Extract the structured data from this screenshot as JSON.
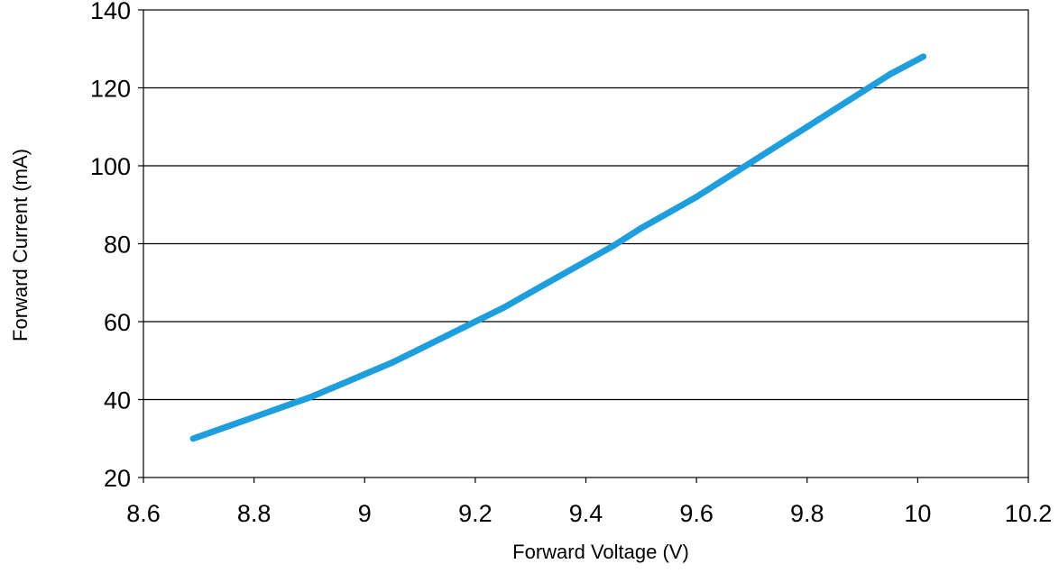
{
  "chart_data": {
    "type": "line",
    "xlabel": "Forward Voltage (V)",
    "ylabel": "Forward Current (mA)",
    "xlim": [
      8.6,
      10.2
    ],
    "ylim": [
      20,
      140
    ],
    "x_ticks": [
      "8.6",
      "8.8",
      "9",
      "9.2",
      "9.4",
      "9.6",
      "9.8",
      "10",
      "10.2"
    ],
    "y_ticks": [
      "20",
      "40",
      "60",
      "80",
      "100",
      "120",
      "140"
    ],
    "grid": "horizontal",
    "legend": "none",
    "series": [
      {
        "color": "#1f9ede",
        "x": [
          8.69,
          8.75,
          8.8,
          8.85,
          8.9,
          8.95,
          9.0,
          9.05,
          9.1,
          9.15,
          9.2,
          9.25,
          9.3,
          9.35,
          9.4,
          9.45,
          9.5,
          9.55,
          9.6,
          9.65,
          9.7,
          9.75,
          9.8,
          9.85,
          9.9,
          9.95,
          10.01
        ],
        "y": [
          30,
          33,
          35.5,
          38,
          40.5,
          43.5,
          46.5,
          49.5,
          53,
          56.5,
          60,
          63.5,
          67.5,
          71.5,
          75.5,
          79.5,
          84,
          88,
          92,
          96.5,
          101,
          105.5,
          110,
          114.5,
          119,
          123.5,
          128
        ]
      }
    ]
  }
}
